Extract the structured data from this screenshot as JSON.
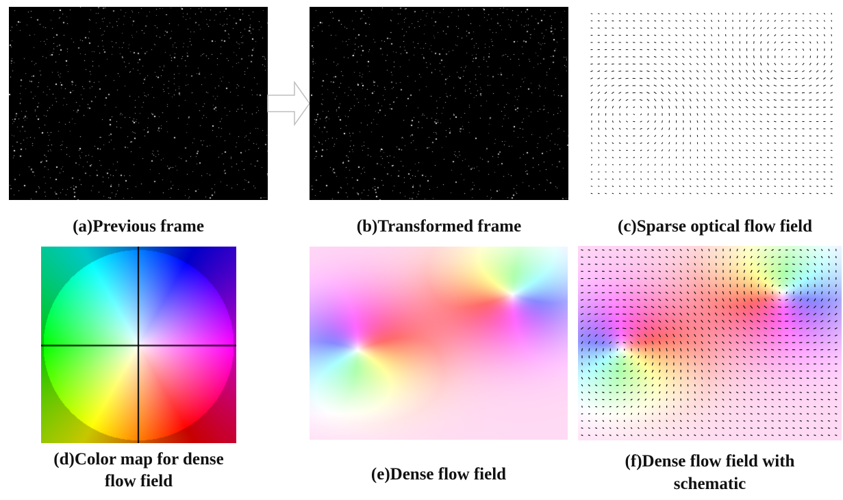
{
  "figure": {
    "panels": [
      {
        "id": "a",
        "caption": "(a)Previous frame"
      },
      {
        "id": "b",
        "caption": "(b)Transformed frame"
      },
      {
        "id": "c",
        "caption": "(c)Sparse optical flow field"
      },
      {
        "id": "d",
        "caption_line1": "(d)Color map for dense",
        "caption_line2": "flow field"
      },
      {
        "id": "e",
        "caption": "(e)Dense flow field"
      },
      {
        "id": "f",
        "caption_line1": "(f)Dense flow field with",
        "caption_line2": "schematic"
      }
    ],
    "arrow_icon": "right-arrow-icon",
    "colors": {
      "frame_bg": "#000000",
      "particle": "#cfcfcf",
      "vector": "#111111",
      "axis": "#000000"
    }
  }
}
